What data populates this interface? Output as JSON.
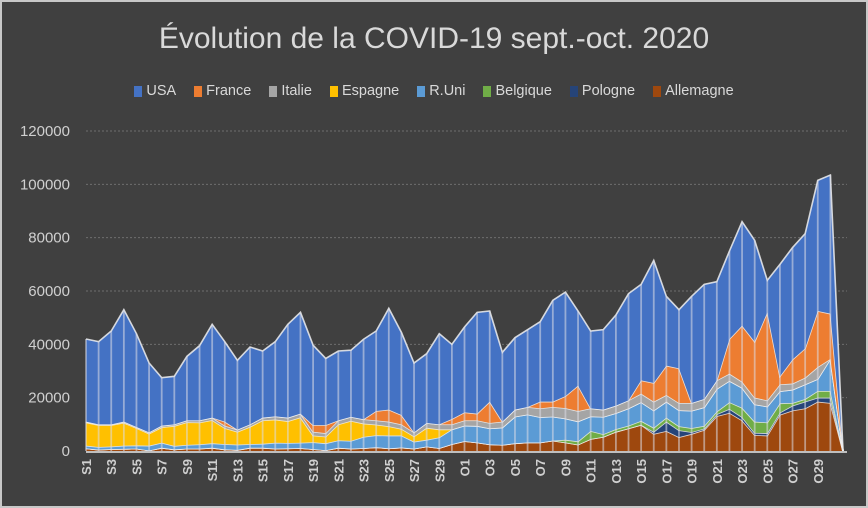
{
  "chart_data": {
    "type": "area",
    "stacked": true,
    "title": "Évolution de la COVID-19 sept.-oct. 2020",
    "xlabel": "",
    "ylabel": "",
    "ylim": [
      0,
      120000
    ],
    "yticks": [
      0,
      20000,
      40000,
      60000,
      80000,
      100000,
      120000
    ],
    "ytick_labels": [
      "0",
      "20000",
      "40000",
      "60000",
      "80000",
      "100000",
      "120000"
    ],
    "grid": true,
    "legend_position": "top",
    "categories": [
      "S1",
      "S2",
      "S3",
      "S4",
      "S5",
      "S6",
      "S7",
      "S8",
      "S9",
      "S10",
      "S11",
      "S12",
      "S13",
      "S14",
      "S15",
      "S16",
      "S17",
      "S18",
      "S19",
      "S20",
      "S21",
      "S22",
      "S23",
      "S24",
      "S25",
      "S26",
      "S27",
      "S28",
      "S29",
      "S30",
      "O1",
      "O2",
      "O3",
      "O4",
      "O5",
      "O6",
      "O7",
      "O8",
      "O9",
      "O10",
      "O11",
      "O12",
      "O13",
      "O14",
      "O15",
      "O16",
      "O17",
      "O18",
      "O19",
      "O20",
      "O21",
      "O22",
      "O23",
      "O24",
      "O25",
      "O26",
      "O27",
      "O28",
      "O29",
      "O30",
      "O31"
    ],
    "visible_tick_labels": [
      "S1",
      "S3",
      "S5",
      "S7",
      "S9",
      "S11",
      "S13",
      "S15",
      "S17",
      "S19",
      "S21",
      "S23",
      "S25",
      "S27",
      "S29",
      "O1",
      "O3",
      "O5",
      "O7",
      "O9",
      "O11",
      "O13",
      "O15",
      "O17",
      "O19",
      "O21",
      "O23",
      "O25",
      "O27",
      "O29"
    ],
    "series": [
      {
        "name": "USA",
        "color": "#4472c4",
        "values": [
          31000,
          31000,
          35000,
          42000,
          35000,
          26000,
          18000,
          18000,
          24000,
          28000,
          35000,
          30000,
          26000,
          29000,
          25000,
          28000,
          35000,
          38000,
          30000,
          25000,
          26000,
          25000,
          30000,
          30000,
          38000,
          31000,
          26000,
          26000,
          34000,
          28000,
          32000,
          38000,
          34000,
          26000,
          27000,
          29000,
          30000,
          38000,
          39000,
          28000,
          29000,
          30000,
          34000,
          40000,
          36000,
          46000,
          26000,
          22000,
          40000,
          43000,
          37000,
          33000,
          39000,
          38000,
          12000,
          42000,
          42000,
          43000,
          49000,
          52000,
          0
        ]
      },
      {
        "name": "France",
        "color": "#ed7d31",
        "values": [
          0,
          0,
          0,
          0,
          0,
          0,
          0,
          0,
          0,
          0,
          0,
          1500,
          0,
          0,
          0,
          0,
          0,
          0,
          2500,
          3000,
          0,
          0,
          0,
          3500,
          4500,
          3500,
          0,
          0,
          0,
          2000,
          3000,
          2500,
          8000,
          0,
          0,
          0,
          2500,
          2000,
          4500,
          9500,
          0,
          0,
          0,
          0,
          5000,
          7000,
          11000,
          13000,
          0,
          0,
          0,
          13000,
          21000,
          21000,
          33000,
          3000,
          9000,
          11000,
          21000,
          17000,
          0
        ]
      },
      {
        "name": "Italie",
        "color": "#a5a5a5",
        "values": [
          300,
          300,
          300,
          400,
          400,
          500,
          600,
          600,
          700,
          800,
          900,
          900,
          800,
          900,
          1000,
          1200,
          1300,
          1400,
          1400,
          1300,
          1500,
          1500,
          1600,
          1600,
          1700,
          1700,
          1500,
          1800,
          1900,
          1900,
          2000,
          2100,
          2000,
          2200,
          2600,
          2800,
          3300,
          3600,
          3900,
          3900,
          3000,
          2700,
          2800,
          3000,
          3200,
          3300,
          2500,
          2700,
          2900,
          3100,
          3200,
          2700,
          2300,
          2500,
          2300,
          2600,
          2300,
          2500,
          4500,
          0,
          0
        ]
      },
      {
        "name": "Espagne",
        "color": "#ffc000",
        "values": [
          8700,
          8200,
          8000,
          8600,
          6500,
          4500,
          5800,
          7500,
          8500,
          8200,
          8700,
          6000,
          4800,
          6500,
          8800,
          8700,
          8200,
          9500,
          2500,
          2500,
          6000,
          7500,
          5000,
          4000,
          3500,
          2500,
          2000,
          4500,
          3000,
          0,
          0,
          0,
          0,
          0,
          0,
          0,
          0,
          0,
          0,
          0,
          0,
          0,
          0,
          0,
          0,
          0,
          0,
          0,
          0,
          0,
          0,
          0,
          0,
          0,
          0,
          0,
          0,
          0,
          0,
          0,
          0
        ]
      },
      {
        "name": "R.Uni",
        "color": "#5b9bd5",
        "values": [
          1000,
          1000,
          1000,
          1200,
          1200,
          1800,
          1900,
          1300,
          1400,
          1600,
          1700,
          2000,
          2000,
          1400,
          1500,
          2200,
          2000,
          2000,
          2600,
          2600,
          2800,
          2900,
          4200,
          4500,
          4800,
          4500,
          2600,
          2500,
          4000,
          5500,
          5800,
          6200,
          6000,
          6500,
          10000,
          10500,
          9500,
          9000,
          8000,
          7500,
          5500,
          6500,
          6000,
          6500,
          7000,
          6500,
          6000,
          6000,
          6500,
          7000,
          8500,
          8000,
          7500,
          6500,
          6000,
          4500,
          5000,
          5500,
          4500,
          12000,
          0
        ]
      },
      {
        "name": "Belgique",
        "color": "#70ad47",
        "values": [
          0,
          0,
          0,
          0,
          0,
          0,
          0,
          0,
          0,
          0,
          0,
          0,
          0,
          0,
          0,
          0,
          0,
          0,
          0,
          0,
          0,
          0,
          0,
          0,
          0,
          0,
          0,
          0,
          0,
          0,
          0,
          0,
          0,
          0,
          0,
          0,
          0,
          0,
          1000,
          1200,
          3000,
          1000,
          1000,
          1000,
          1500,
          1500,
          1500,
          1500,
          1500,
          1000,
          1000,
          2500,
          3500,
          4200,
          4000,
          3500,
          1000,
          1000,
          2500,
          2500,
          0
        ]
      },
      {
        "name": "Pologne",
        "color": "#264478",
        "values": [
          0,
          0,
          0,
          0,
          0,
          0,
          0,
          0,
          0,
          0,
          0,
          0,
          0,
          0,
          0,
          0,
          0,
          0,
          0,
          0,
          0,
          0,
          0,
          0,
          0,
          0,
          0,
          0,
          0,
          0,
          0,
          0,
          0,
          0,
          0,
          0,
          0,
          0,
          0,
          0,
          0,
          0,
          0,
          0,
          0,
          800,
          3500,
          2600,
          700,
          500,
          700,
          1500,
          1200,
          800,
          900,
          800,
          1800,
          2500,
          1500,
          2000,
          0
        ]
      },
      {
        "name": "Allemagne",
        "color": "#9e480e",
        "values": [
          1000,
          500,
          700,
          800,
          900,
          200,
          1200,
          600,
          900,
          900,
          1200,
          600,
          400,
          1200,
          1200,
          900,
          1000,
          1100,
          700,
          300,
          1200,
          900,
          1100,
          1400,
          1000,
          1300,
          900,
          1700,
          1100,
          2600,
          3700,
          3200,
          2500,
          2300,
          2900,
          3200,
          3200,
          3900,
          3200,
          2400,
          4500,
          5300,
          7200,
          8500,
          9800,
          6400,
          7500,
          5200,
          6400,
          7900,
          13100,
          14300,
          11500,
          6000,
          5800,
          13600,
          15200,
          16000,
          18500,
          18000,
          0
        ]
      }
    ]
  }
}
